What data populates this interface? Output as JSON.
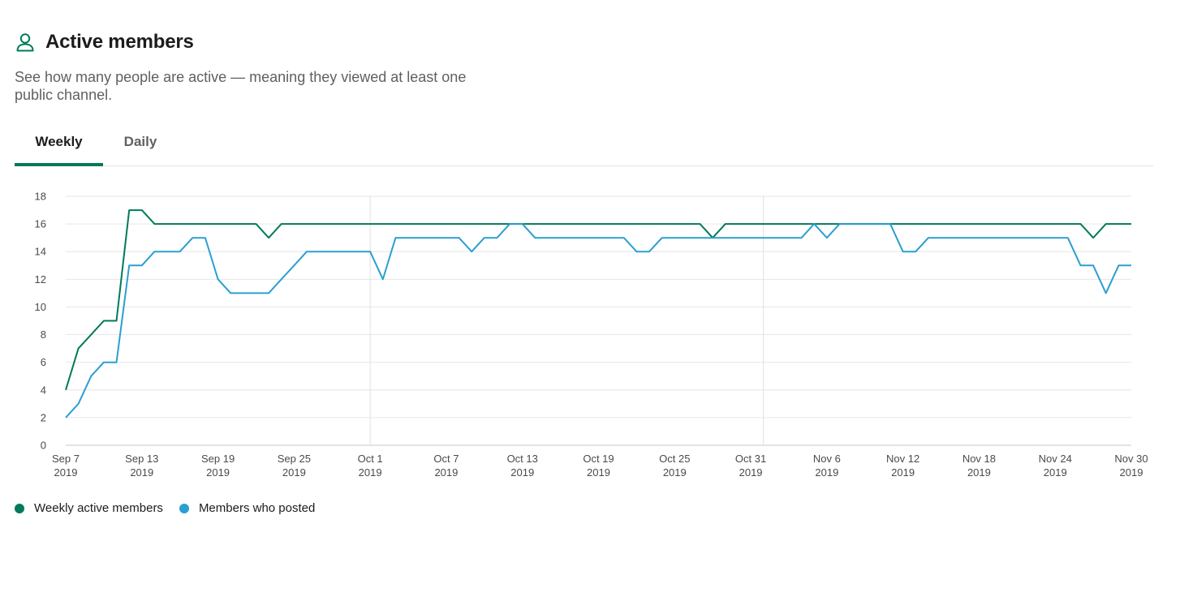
{
  "header": {
    "title": "Active members",
    "description": "See how many people are active — meaning they viewed at least one public channel.",
    "icon": "person-icon"
  },
  "tabs": [
    {
      "label": "Weekly",
      "active": true
    },
    {
      "label": "Daily",
      "active": false
    }
  ],
  "colors": {
    "accent": "#007a5a",
    "weekly_active": "#007a5a",
    "posted": "#2b9fd0"
  },
  "chart_data": {
    "type": "line",
    "x_start": "2019-09-07",
    "x_end": "2019-11-30",
    "ylim": [
      0,
      18
    ],
    "yticks": [
      0,
      2,
      4,
      6,
      8,
      10,
      12,
      14,
      16,
      18
    ],
    "xticks": [
      {
        "month_day": "Sep 7",
        "year": "2019",
        "date": "2019-09-07"
      },
      {
        "month_day": "Sep 13",
        "year": "2019",
        "date": "2019-09-13"
      },
      {
        "month_day": "Sep 19",
        "year": "2019",
        "date": "2019-09-19"
      },
      {
        "month_day": "Sep 25",
        "year": "2019",
        "date": "2019-09-25"
      },
      {
        "month_day": "Oct 1",
        "year": "2019",
        "date": "2019-10-01"
      },
      {
        "month_day": "Oct 7",
        "year": "2019",
        "date": "2019-10-07"
      },
      {
        "month_day": "Oct 13",
        "year": "2019",
        "date": "2019-10-13"
      },
      {
        "month_day": "Oct 19",
        "year": "2019",
        "date": "2019-10-19"
      },
      {
        "month_day": "Oct 25",
        "year": "2019",
        "date": "2019-10-25"
      },
      {
        "month_day": "Oct 31",
        "year": "2019",
        "date": "2019-10-31"
      },
      {
        "month_day": "Nov 6",
        "year": "2019",
        "date": "2019-11-06"
      },
      {
        "month_day": "Nov 12",
        "year": "2019",
        "date": "2019-11-12"
      },
      {
        "month_day": "Nov 18",
        "year": "2019",
        "date": "2019-11-18"
      },
      {
        "month_day": "Nov 24",
        "year": "2019",
        "date": "2019-11-24"
      },
      {
        "month_day": "Nov 30",
        "year": "2019",
        "date": "2019-11-30"
      }
    ],
    "month_boundaries": [
      "2019-10-01",
      "2019-11-01"
    ],
    "grid": true,
    "legend_position": "bottom-left",
    "series": [
      {
        "name": "Weekly active members",
        "color": "#007a5a",
        "points": [
          [
            "2019-09-07",
            4
          ],
          [
            "2019-09-08",
            7
          ],
          [
            "2019-09-09",
            8
          ],
          [
            "2019-09-10",
            9
          ],
          [
            "2019-09-11",
            9
          ],
          [
            "2019-09-12",
            17
          ],
          [
            "2019-09-13",
            17
          ],
          [
            "2019-09-14",
            16
          ],
          [
            "2019-09-22",
            16
          ],
          [
            "2019-09-23",
            15
          ],
          [
            "2019-09-24",
            16
          ],
          [
            "2019-10-27",
            16
          ],
          [
            "2019-10-28",
            15
          ],
          [
            "2019-10-29",
            16
          ],
          [
            "2019-11-26",
            16
          ],
          [
            "2019-11-27",
            15
          ],
          [
            "2019-11-28",
            16
          ],
          [
            "2019-11-30",
            16
          ]
        ]
      },
      {
        "name": "Members who posted",
        "color": "#2b9fd0",
        "points": [
          [
            "2019-09-07",
            2
          ],
          [
            "2019-09-08",
            3
          ],
          [
            "2019-09-09",
            5
          ],
          [
            "2019-09-10",
            6
          ],
          [
            "2019-09-11",
            6
          ],
          [
            "2019-09-12",
            13
          ],
          [
            "2019-09-13",
            13
          ],
          [
            "2019-09-14",
            14
          ],
          [
            "2019-09-16",
            14
          ],
          [
            "2019-09-17",
            15
          ],
          [
            "2019-09-18",
            15
          ],
          [
            "2019-09-19",
            12
          ],
          [
            "2019-09-20",
            11
          ],
          [
            "2019-09-23",
            11
          ],
          [
            "2019-09-24",
            12
          ],
          [
            "2019-09-25",
            13
          ],
          [
            "2019-09-26",
            14
          ],
          [
            "2019-10-01",
            14
          ],
          [
            "2019-10-02",
            12
          ],
          [
            "2019-10-03",
            15
          ],
          [
            "2019-10-08",
            15
          ],
          [
            "2019-10-09",
            14
          ],
          [
            "2019-10-10",
            15
          ],
          [
            "2019-10-11",
            15
          ],
          [
            "2019-10-12",
            16
          ],
          [
            "2019-10-13",
            16
          ],
          [
            "2019-10-14",
            15
          ],
          [
            "2019-10-21",
            15
          ],
          [
            "2019-10-22",
            14
          ],
          [
            "2019-10-23",
            14
          ],
          [
            "2019-10-24",
            15
          ],
          [
            "2019-11-04",
            15
          ],
          [
            "2019-11-05",
            16
          ],
          [
            "2019-11-06",
            15
          ],
          [
            "2019-11-07",
            16
          ],
          [
            "2019-11-11",
            16
          ],
          [
            "2019-11-12",
            14
          ],
          [
            "2019-11-13",
            14
          ],
          [
            "2019-11-14",
            15
          ],
          [
            "2019-11-25",
            15
          ],
          [
            "2019-11-26",
            13
          ],
          [
            "2019-11-27",
            13
          ],
          [
            "2019-11-28",
            11
          ],
          [
            "2019-11-29",
            13
          ],
          [
            "2019-11-30",
            13
          ]
        ]
      }
    ]
  }
}
